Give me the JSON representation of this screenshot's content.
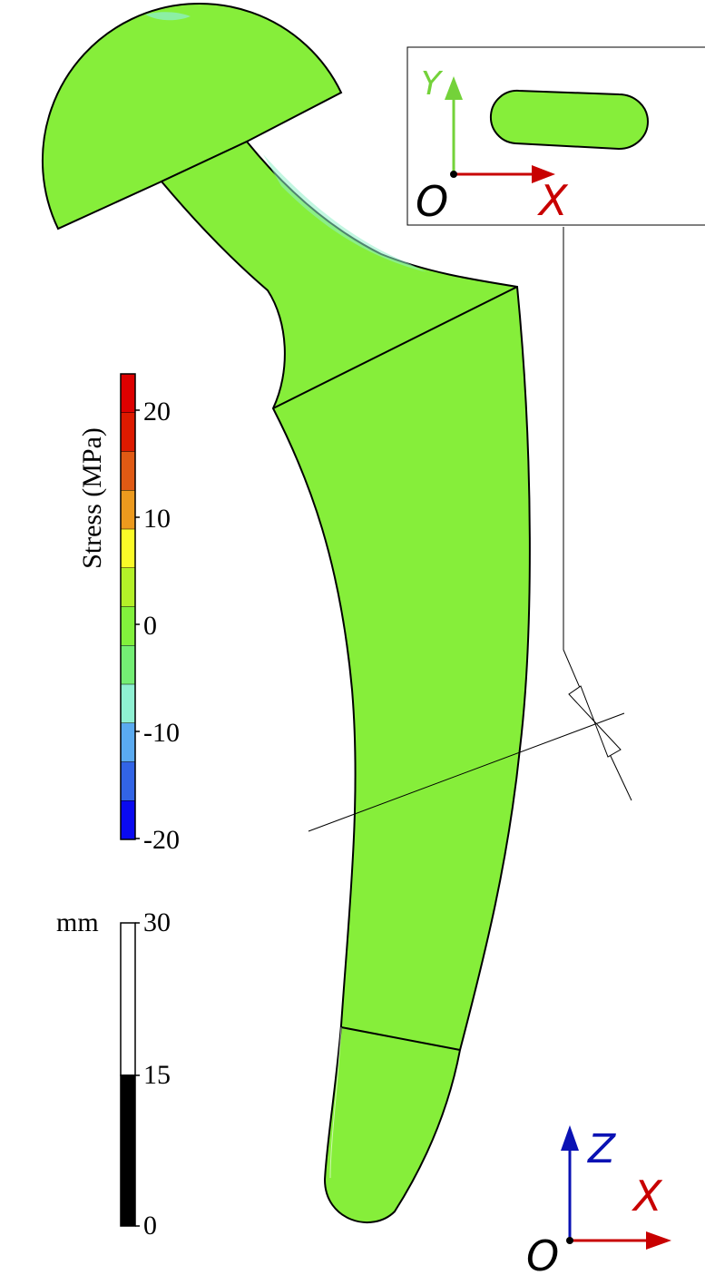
{
  "stress_bar": {
    "title": "Stress (MPa)",
    "ticks": [
      "20",
      "10",
      "0",
      "-10",
      "-20"
    ],
    "color_bands": [
      "#dd0000",
      "#dd1a00",
      "#e05a14",
      "#ec9a1e",
      "#fafa28",
      "#b4f028",
      "#82f03c",
      "#74ee74",
      "#8ff0d2",
      "#5aaaf0",
      "#3264e6",
      "#0a0af0"
    ]
  },
  "scale_bar": {
    "unit": "mm",
    "ticks": [
      "30",
      "15",
      "0"
    ]
  },
  "inset_axes": {
    "y": "Y",
    "x": "X",
    "origin": "O"
  },
  "main_axes": {
    "z": "Z",
    "x": "X",
    "origin": "O"
  },
  "colors": {
    "implant_fill": "#86ee3a",
    "axis_red": "#c80000",
    "axis_green": "#74d23a",
    "axis_blue": "#0a12b4"
  }
}
